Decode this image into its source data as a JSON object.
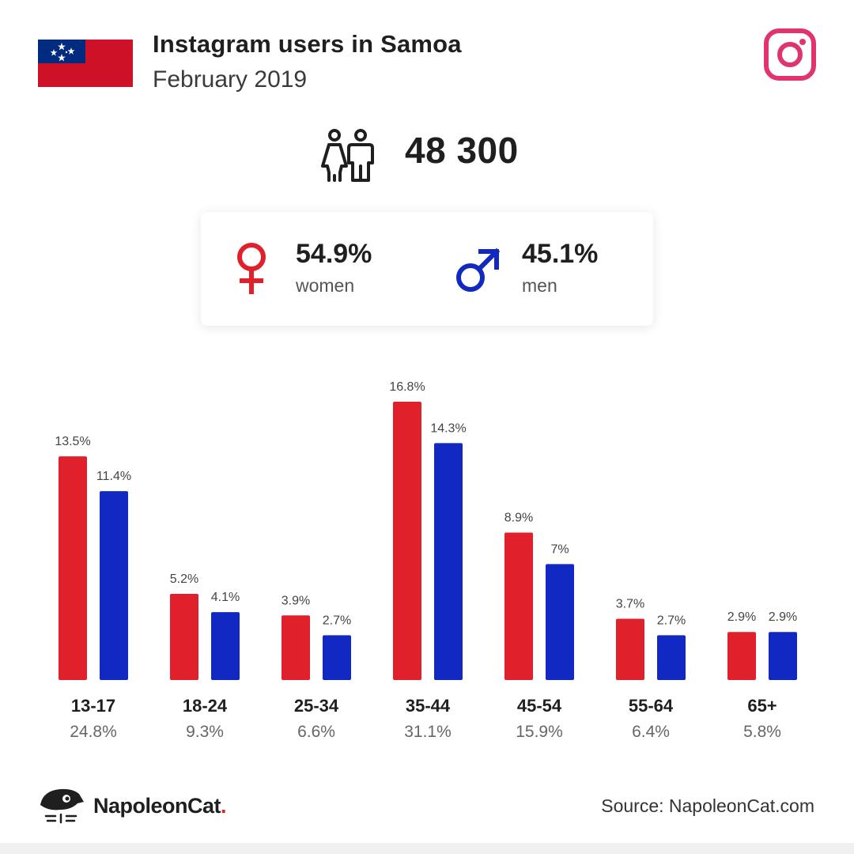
{
  "header": {
    "title": "Instagram users in Samoa",
    "subtitle": "February 2019",
    "flag_icon": "samoa-flag-icon",
    "brand_icon": "instagram-icon"
  },
  "total": {
    "icon": "people-icon",
    "value": "48 300"
  },
  "gender": {
    "women": {
      "percent": "54.9%",
      "label": "women",
      "icon": "female-symbol-icon",
      "color": "#e0202a"
    },
    "men": {
      "percent": "45.1%",
      "label": "men",
      "icon": "male-symbol-icon",
      "color": "#1129c2"
    }
  },
  "chart_data": {
    "type": "bar",
    "categories": [
      "13-17",
      "18-24",
      "25-34",
      "35-44",
      "45-54",
      "55-64",
      "65+"
    ],
    "category_totals": [
      "24.8%",
      "9.3%",
      "6.6%",
      "31.1%",
      "15.9%",
      "6.4%",
      "5.8%"
    ],
    "series": [
      {
        "values": [
          13.5,
          5.2,
          3.9,
          16.8,
          8.9,
          3.7,
          2.9
        ],
        "labels": [
          "13.5%",
          "5.2%",
          "3.9%",
          "16.8%",
          "8.9%",
          "3.7%",
          "2.9%"
        ],
        "color": "#e0202a"
      },
      {
        "values": [
          11.4,
          4.1,
          2.7,
          14.3,
          7,
          2.7,
          2.9
        ],
        "labels": [
          "11.4%",
          "4.1%",
          "2.7%",
          "14.3%",
          "7%",
          "2.7%",
          "2.9%"
        ],
        "color": "#1129c2"
      }
    ],
    "title": "",
    "xlabel": "",
    "ylabel": "",
    "ylim": [
      0,
      16.8
    ],
    "grid": false,
    "legend": "none"
  },
  "footer": {
    "brand_name": "NapoleonCat",
    "brand_dot": ".",
    "brand_icon": "napoleoncat-logo-icon",
    "source": "Source: NapoleonCat.com"
  }
}
